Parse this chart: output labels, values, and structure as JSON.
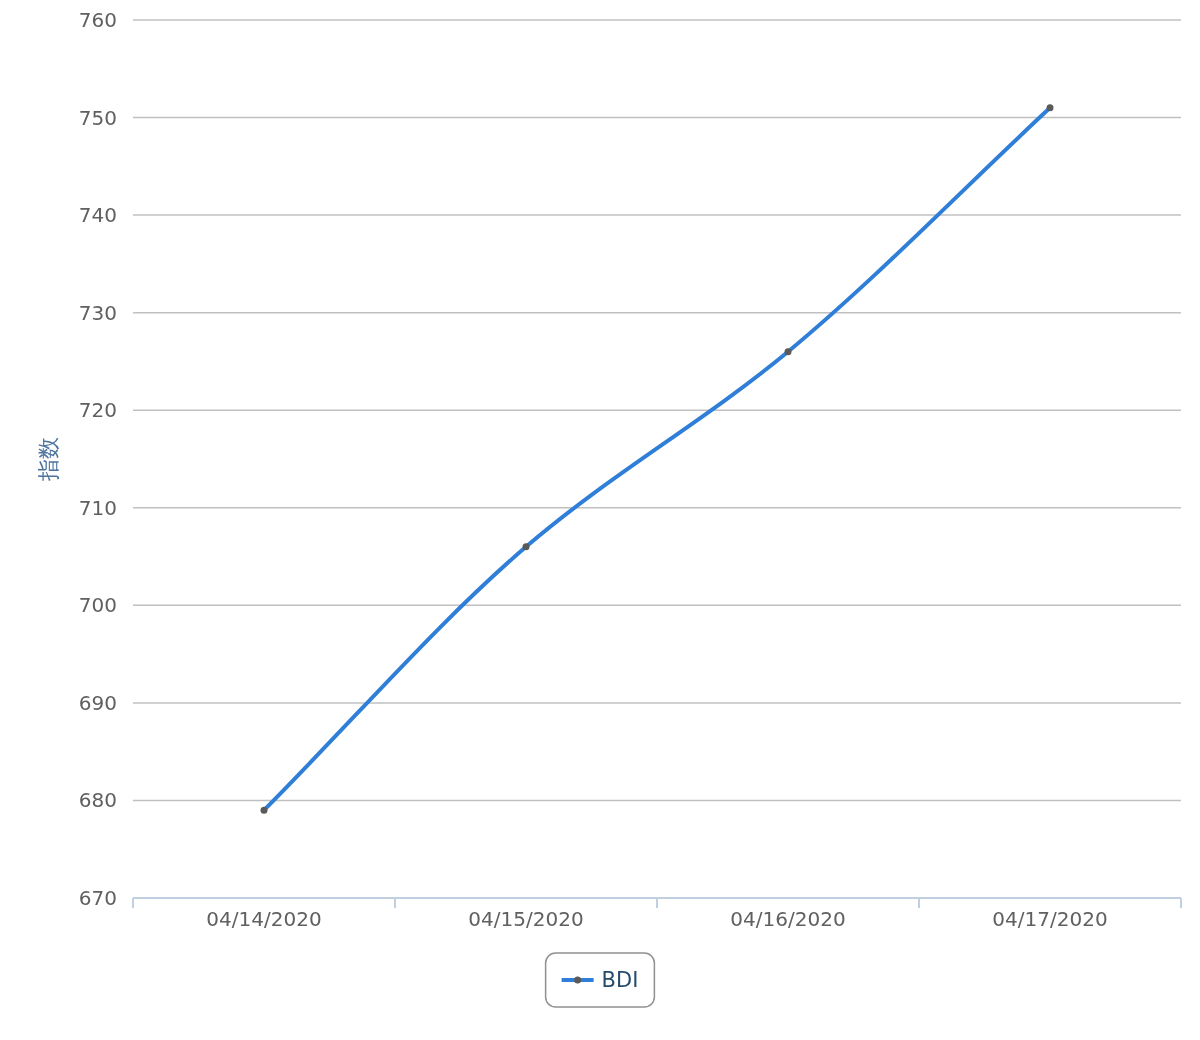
{
  "chart_data": {
    "type": "line",
    "ylabel": "指数",
    "categories": [
      "04/14/2020",
      "04/15/2020",
      "04/16/2020",
      "04/17/2020"
    ],
    "series": [
      {
        "name": "BDI",
        "color": "#2f7ed8",
        "values": [
          679,
          706,
          726,
          751
        ]
      }
    ],
    "ylim": [
      670,
      760
    ],
    "yticks": [
      670,
      680,
      690,
      700,
      710,
      720,
      730,
      740,
      750,
      760
    ],
    "grid": "y",
    "legend": "bottom",
    "marker": "circle",
    "line_style": "solid"
  }
}
